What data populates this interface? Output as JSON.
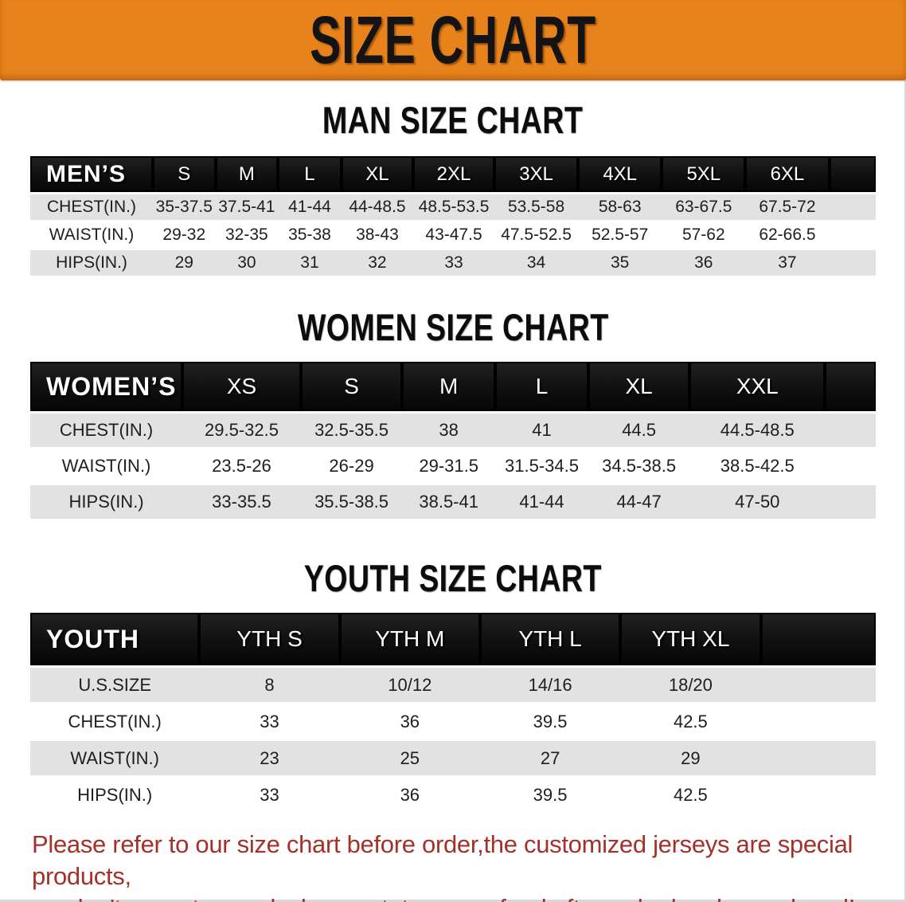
{
  "banner": {
    "title": "SIZE CHART"
  },
  "sections": [
    {
      "key": "men",
      "title": "MAN SIZE CHART",
      "header": {
        "label": "MEN’S",
        "sizes": [
          "S",
          "M",
          "L",
          "XL",
          "2XL",
          "3XL",
          "4XL",
          "5XL",
          "6XL"
        ]
      },
      "rows": [
        {
          "label": "CHEST(IN.)",
          "values": [
            "35-37.5",
            "37.5-41",
            "41-44",
            "44-48.5",
            "48.5-53.5",
            "53.5-58",
            "58-63",
            "63-67.5",
            "67.5-72"
          ]
        },
        {
          "label": "WAIST(IN.)",
          "values": [
            "29-32",
            "32-35",
            "35-38",
            "38-43",
            "43-47.5",
            "47.5-52.5",
            "52.5-57",
            "57-62",
            "62-66.5"
          ]
        },
        {
          "label": "HIPS(IN.)",
          "values": [
            "29",
            "30",
            "31",
            "32",
            "33",
            "34",
            "35",
            "36",
            "37"
          ]
        }
      ]
    },
    {
      "key": "women",
      "title": "WOMEN SIZE CHART",
      "header": {
        "label": "WOMEN’S",
        "sizes": [
          "XS",
          "S",
          "M",
          "L",
          "XL",
          "XXL"
        ]
      },
      "rows": [
        {
          "label": "CHEST(IN.)",
          "values": [
            "29.5-32.5",
            "32.5-35.5",
            "38",
            "41",
            "44.5",
            "44.5-48.5"
          ]
        },
        {
          "label": "WAIST(IN.)",
          "values": [
            "23.5-26",
            "26-29",
            "29-31.5",
            "31.5-34.5",
            "34.5-38.5",
            "38.5-42.5"
          ]
        },
        {
          "label": "HIPS(IN.)",
          "values": [
            "33-35.5",
            "35.5-38.5",
            "38.5-41",
            "41-44",
            "44-47",
            "47-50"
          ]
        }
      ]
    },
    {
      "key": "youth",
      "title": "YOUTH SIZE CHART",
      "header": {
        "label": "YOUTH",
        "sizes": [
          "YTH S",
          "YTH M",
          "YTH L",
          "YTH XL"
        ]
      },
      "rows": [
        {
          "label": "U.S.SIZE",
          "values": [
            "8",
            "10/12",
            "14/16",
            "18/20"
          ]
        },
        {
          "label": "CHEST(IN.)",
          "values": [
            "33",
            "36",
            "39.5",
            "42.5"
          ]
        },
        {
          "label": "WAIST(IN.)",
          "values": [
            "23",
            "25",
            "27",
            "29"
          ]
        },
        {
          "label": "HIPS(IN.)",
          "values": [
            "33",
            "36",
            "39.5",
            "42.5"
          ]
        }
      ]
    }
  ],
  "disclaimer": {
    "line1": "Please refer to our size chart before order,the customized jerseys are special products,",
    "line2": "we don't accept cancel, change, teturn or refund after order has been placed!"
  },
  "colors": {
    "banner_orange": "#e8821a",
    "header_black": "#141414",
    "row_gray": "#e2e2e2",
    "disclaimer_red": "#a33129"
  }
}
